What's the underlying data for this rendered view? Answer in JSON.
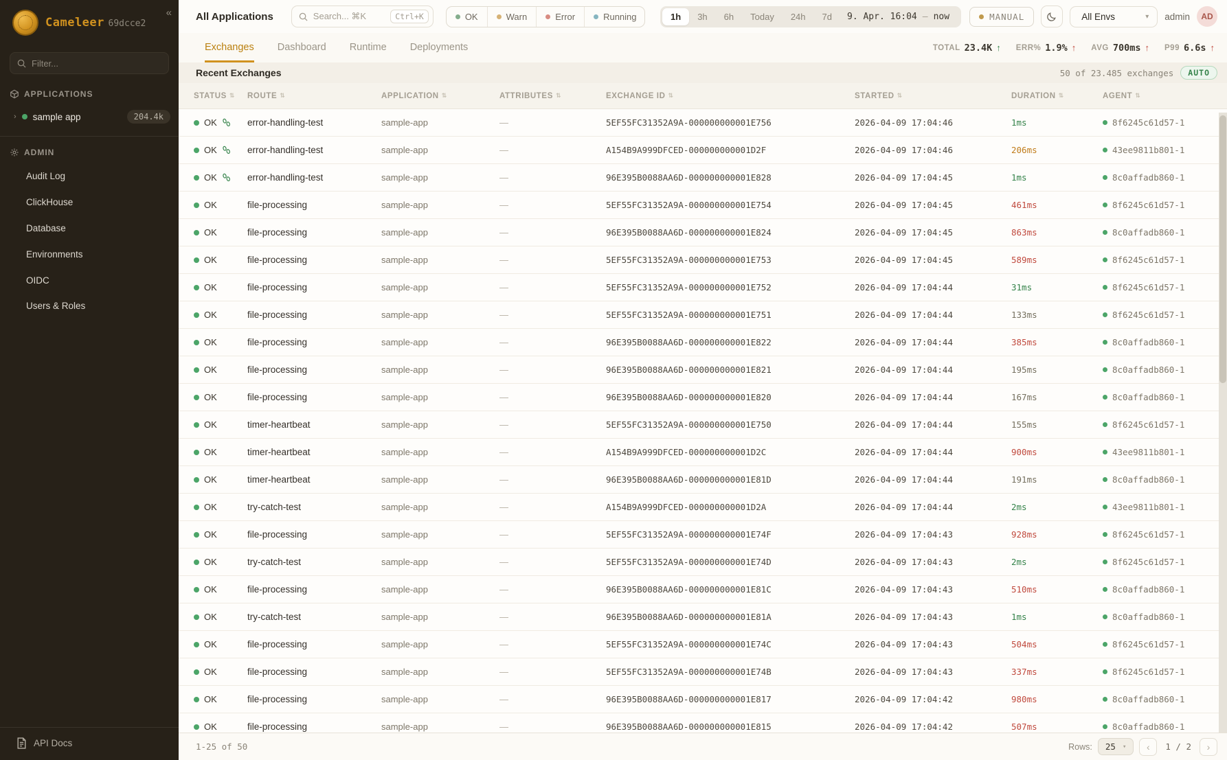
{
  "sidebar": {
    "logo_text": "Cameleer",
    "logo_version": "69dcce2",
    "collapse_icon": "«",
    "filter_placeholder": "Filter...",
    "applications_label": "APPLICATIONS",
    "app_item": {
      "label": "sample app",
      "badge": "204.4k"
    },
    "admin_label": "ADMIN",
    "admin_items": [
      "Audit Log",
      "ClickHouse",
      "Database",
      "Environments",
      "OIDC",
      "Users & Roles"
    ],
    "api_docs_label": "API Docs"
  },
  "topbar": {
    "title": "All Applications",
    "search_placeholder": "Search... ⌘K",
    "search_shortcut": "Ctrl+K",
    "status_filters": [
      {
        "label": "OK",
        "color": "#84ad8c"
      },
      {
        "label": "Warn",
        "color": "#d6b275"
      },
      {
        "label": "Error",
        "color": "#d88c82"
      },
      {
        "label": "Running",
        "color": "#86b5c0"
      }
    ],
    "time_ranges": [
      "1h",
      "3h",
      "6h",
      "Today",
      "24h",
      "7d"
    ],
    "time_selected": "1h",
    "time_from": "9. Apr. 16:04",
    "time_separator": "–",
    "time_to": "now",
    "manual_label": "MANUAL",
    "env_selected": "All Envs",
    "user_name": "admin",
    "avatar_initials": "AD"
  },
  "tabs": {
    "items": [
      "Exchanges",
      "Dashboard",
      "Runtime",
      "Deployments"
    ],
    "active": "Exchanges"
  },
  "stats": [
    {
      "label": "TOTAL",
      "value": "23.4K",
      "arrow": "↑",
      "arrow_color": "green"
    },
    {
      "label": "ERR%",
      "value": "1.9%",
      "arrow": "↑",
      "arrow_color": "red"
    },
    {
      "label": "AVG",
      "value": "700ms",
      "arrow": "↑",
      "arrow_color": "red"
    },
    {
      "label": "P99",
      "value": "6.6s",
      "arrow": "↑",
      "arrow_color": "red"
    }
  ],
  "table": {
    "title": "Recent Exchanges",
    "summary": "50 of 23.485 exchanges",
    "auto_badge": "AUTO",
    "columns": [
      "STATUS",
      "ROUTE",
      "APPLICATION",
      "ATTRIBUTES",
      "EXCHANGE ID",
      "STARTED",
      "DURATION",
      "AGENT"
    ],
    "rows": [
      {
        "status": "OK",
        "footprints": true,
        "route": "error-handling-test",
        "app": "sample-app",
        "attributes": "—",
        "id": "5EF55FC31352A9A-000000000001E756",
        "started": "2026-04-09 17:04:46",
        "duration": "1ms",
        "duration_color": "green",
        "agent": "8f6245c61d57-1"
      },
      {
        "status": "OK",
        "footprints": true,
        "route": "error-handling-test",
        "app": "sample-app",
        "attributes": "—",
        "id": "A154B9A999DFCED-000000000001D2F",
        "started": "2026-04-09 17:04:46",
        "duration": "206ms",
        "duration_color": "orange",
        "agent": "43ee9811b801-1"
      },
      {
        "status": "OK",
        "footprints": true,
        "route": "error-handling-test",
        "app": "sample-app",
        "attributes": "—",
        "id": "96E395B0088AA6D-000000000001E828",
        "started": "2026-04-09 17:04:45",
        "duration": "1ms",
        "duration_color": "green",
        "agent": "8c0affadb860-1"
      },
      {
        "status": "OK",
        "footprints": false,
        "route": "file-processing",
        "app": "sample-app",
        "attributes": "—",
        "id": "5EF55FC31352A9A-000000000001E754",
        "started": "2026-04-09 17:04:45",
        "duration": "461ms",
        "duration_color": "red",
        "agent": "8f6245c61d57-1"
      },
      {
        "status": "OK",
        "footprints": false,
        "route": "file-processing",
        "app": "sample-app",
        "attributes": "—",
        "id": "96E395B0088AA6D-000000000001E824",
        "started": "2026-04-09 17:04:45",
        "duration": "863ms",
        "duration_color": "red",
        "agent": "8c0affadb860-1"
      },
      {
        "status": "OK",
        "footprints": false,
        "route": "file-processing",
        "app": "sample-app",
        "attributes": "—",
        "id": "5EF55FC31352A9A-000000000001E753",
        "started": "2026-04-09 17:04:45",
        "duration": "589ms",
        "duration_color": "red",
        "agent": "8f6245c61d57-1"
      },
      {
        "status": "OK",
        "footprints": false,
        "route": "file-processing",
        "app": "sample-app",
        "attributes": "—",
        "id": "5EF55FC31352A9A-000000000001E752",
        "started": "2026-04-09 17:04:44",
        "duration": "31ms",
        "duration_color": "green",
        "agent": "8f6245c61d57-1"
      },
      {
        "status": "OK",
        "footprints": false,
        "route": "file-processing",
        "app": "sample-app",
        "attributes": "—",
        "id": "5EF55FC31352A9A-000000000001E751",
        "started": "2026-04-09 17:04:44",
        "duration": "133ms",
        "duration_color": "gray",
        "agent": "8f6245c61d57-1"
      },
      {
        "status": "OK",
        "footprints": false,
        "route": "file-processing",
        "app": "sample-app",
        "attributes": "—",
        "id": "96E395B0088AA6D-000000000001E822",
        "started": "2026-04-09 17:04:44",
        "duration": "385ms",
        "duration_color": "red",
        "agent": "8c0affadb860-1"
      },
      {
        "status": "OK",
        "footprints": false,
        "route": "file-processing",
        "app": "sample-app",
        "attributes": "—",
        "id": "96E395B0088AA6D-000000000001E821",
        "started": "2026-04-09 17:04:44",
        "duration": "195ms",
        "duration_color": "gray",
        "agent": "8c0affadb860-1"
      },
      {
        "status": "OK",
        "footprints": false,
        "route": "file-processing",
        "app": "sample-app",
        "attributes": "—",
        "id": "96E395B0088AA6D-000000000001E820",
        "started": "2026-04-09 17:04:44",
        "duration": "167ms",
        "duration_color": "gray",
        "agent": "8c0affadb860-1"
      },
      {
        "status": "OK",
        "footprints": false,
        "route": "timer-heartbeat",
        "app": "sample-app",
        "attributes": "—",
        "id": "5EF55FC31352A9A-000000000001E750",
        "started": "2026-04-09 17:04:44",
        "duration": "155ms",
        "duration_color": "gray",
        "agent": "8f6245c61d57-1"
      },
      {
        "status": "OK",
        "footprints": false,
        "route": "timer-heartbeat",
        "app": "sample-app",
        "attributes": "—",
        "id": "A154B9A999DFCED-000000000001D2C",
        "started": "2026-04-09 17:04:44",
        "duration": "900ms",
        "duration_color": "red",
        "agent": "43ee9811b801-1"
      },
      {
        "status": "OK",
        "footprints": false,
        "route": "timer-heartbeat",
        "app": "sample-app",
        "attributes": "—",
        "id": "96E395B0088AA6D-000000000001E81D",
        "started": "2026-04-09 17:04:44",
        "duration": "191ms",
        "duration_color": "gray",
        "agent": "8c0affadb860-1"
      },
      {
        "status": "OK",
        "footprints": false,
        "route": "try-catch-test",
        "app": "sample-app",
        "attributes": "—",
        "id": "A154B9A999DFCED-000000000001D2A",
        "started": "2026-04-09 17:04:44",
        "duration": "2ms",
        "duration_color": "green",
        "agent": "43ee9811b801-1"
      },
      {
        "status": "OK",
        "footprints": false,
        "route": "file-processing",
        "app": "sample-app",
        "attributes": "—",
        "id": "5EF55FC31352A9A-000000000001E74F",
        "started": "2026-04-09 17:04:43",
        "duration": "928ms",
        "duration_color": "red",
        "agent": "8f6245c61d57-1"
      },
      {
        "status": "OK",
        "footprints": false,
        "route": "try-catch-test",
        "app": "sample-app",
        "attributes": "—",
        "id": "5EF55FC31352A9A-000000000001E74D",
        "started": "2026-04-09 17:04:43",
        "duration": "2ms",
        "duration_color": "green",
        "agent": "8f6245c61d57-1"
      },
      {
        "status": "OK",
        "footprints": false,
        "route": "file-processing",
        "app": "sample-app",
        "attributes": "—",
        "id": "96E395B0088AA6D-000000000001E81C",
        "started": "2026-04-09 17:04:43",
        "duration": "510ms",
        "duration_color": "red",
        "agent": "8c0affadb860-1"
      },
      {
        "status": "OK",
        "footprints": false,
        "route": "try-catch-test",
        "app": "sample-app",
        "attributes": "—",
        "id": "96E395B0088AA6D-000000000001E81A",
        "started": "2026-04-09 17:04:43",
        "duration": "1ms",
        "duration_color": "green",
        "agent": "8c0affadb860-1"
      },
      {
        "status": "OK",
        "footprints": false,
        "route": "file-processing",
        "app": "sample-app",
        "attributes": "—",
        "id": "5EF55FC31352A9A-000000000001E74C",
        "started": "2026-04-09 17:04:43",
        "duration": "504ms",
        "duration_color": "red",
        "agent": "8f6245c61d57-1"
      },
      {
        "status": "OK",
        "footprints": false,
        "route": "file-processing",
        "app": "sample-app",
        "attributes": "—",
        "id": "5EF55FC31352A9A-000000000001E74B",
        "started": "2026-04-09 17:04:43",
        "duration": "337ms",
        "duration_color": "red",
        "agent": "8f6245c61d57-1"
      },
      {
        "status": "OK",
        "footprints": false,
        "route": "file-processing",
        "app": "sample-app",
        "attributes": "—",
        "id": "96E395B0088AA6D-000000000001E817",
        "started": "2026-04-09 17:04:42",
        "duration": "980ms",
        "duration_color": "red",
        "agent": "8c0affadb860-1"
      },
      {
        "status": "OK",
        "footprints": false,
        "route": "file-processing",
        "app": "sample-app",
        "attributes": "—",
        "id": "96E395B0088AA6D-000000000001E815",
        "started": "2026-04-09 17:04:42",
        "duration": "507ms",
        "duration_color": "red",
        "agent": "8c0affadb860-1"
      }
    ]
  },
  "footer": {
    "range": "1-25 of 50",
    "rows_label": "Rows:",
    "rows_value": "25",
    "prev_icon": "‹",
    "page_indicator": "1 / 2",
    "next_icon": "›"
  },
  "colors": {
    "brand_amber": "#d1921f",
    "status_green": "#4ca568",
    "duration_green": "#35834a",
    "duration_orange": "#c07c1b",
    "duration_red": "#c04a3e",
    "sidebar_bg": "#272118"
  }
}
